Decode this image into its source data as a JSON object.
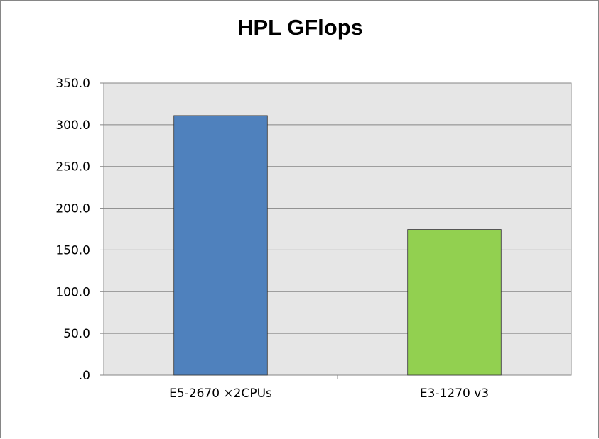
{
  "chart_data": {
    "type": "bar",
    "title": "HPL GFlops",
    "xlabel": "",
    "ylabel": "",
    "categories": [
      "E5-2670 ×2CPUs",
      "E3-1270 v3"
    ],
    "values": [
      311.0,
      174.5
    ],
    "bar_colors": [
      "#4F81BD",
      "#92D050"
    ],
    "ylim": [
      0,
      350
    ],
    "y_ticks": [
      ".0",
      "50.0",
      "100.0",
      "150.0",
      "200.0",
      "250.0",
      "300.0",
      "350.0"
    ],
    "grid": true,
    "legend": "none",
    "plot_background": "#E6E6E6"
  }
}
